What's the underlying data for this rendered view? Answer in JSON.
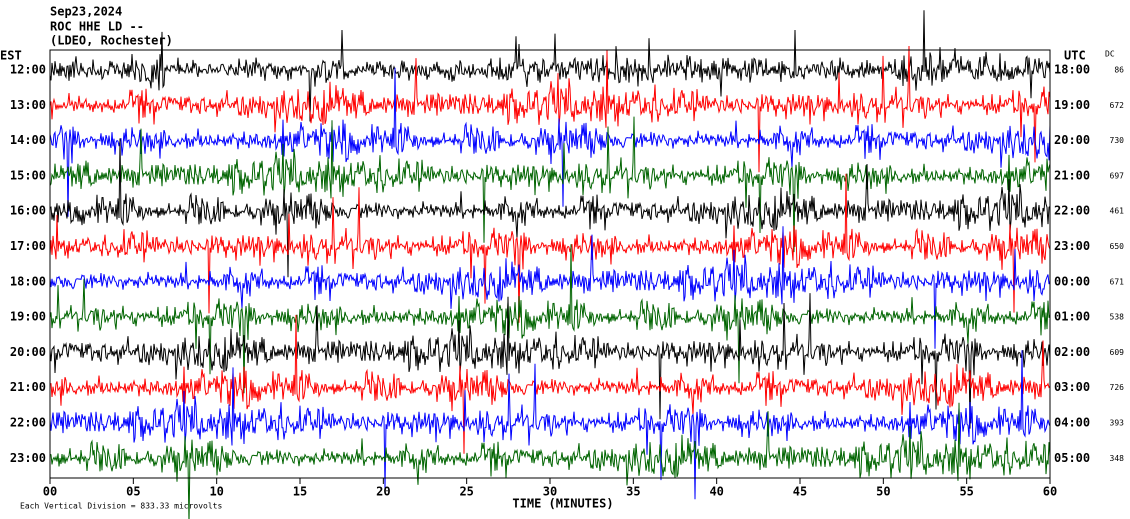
{
  "chart_data": {
    "type": "helicorder",
    "title_lines": [
      "Sep23,2024",
      "ROC HHE LD --",
      "(LDEO, Rochester)"
    ],
    "left_axis_title": "EST",
    "right_axis_title": "UTC",
    "dc_title": "DC",
    "rows": [
      {
        "est": "12:00",
        "utc": "18:00",
        "dc": "86",
        "color": "#000000"
      },
      {
        "est": "13:00",
        "utc": "19:00",
        "dc": "672",
        "color": "#ff0000"
      },
      {
        "est": "14:00",
        "utc": "20:00",
        "dc": "730",
        "color": "#0000ff"
      },
      {
        "est": "15:00",
        "utc": "21:00",
        "dc": "697",
        "color": "#006400"
      },
      {
        "est": "16:00",
        "utc": "22:00",
        "dc": "461",
        "color": "#000000"
      },
      {
        "est": "17:00",
        "utc": "23:00",
        "dc": "650",
        "color": "#ff0000"
      },
      {
        "est": "18:00",
        "utc": "00:00",
        "dc": "671",
        "color": "#0000ff"
      },
      {
        "est": "19:00",
        "utc": "01:00",
        "dc": "538",
        "color": "#006400"
      },
      {
        "est": "20:00",
        "utc": "02:00",
        "dc": "609",
        "color": "#000000"
      },
      {
        "est": "21:00",
        "utc": "03:00",
        "dc": "726",
        "color": "#ff0000"
      },
      {
        "est": "22:00",
        "utc": "04:00",
        "dc": "393",
        "color": "#0000ff"
      },
      {
        "est": "23:00",
        "utc": "05:00",
        "dc": "348",
        "color": "#006400"
      }
    ],
    "xlim": [
      0,
      60
    ],
    "xticks": [
      {
        "value": 0,
        "label": "00"
      },
      {
        "value": 5,
        "label": "05"
      },
      10,
      15,
      20,
      25,
      30,
      35,
      40,
      45,
      50,
      55,
      60
    ],
    "xlabel": "TIME (MINUTES)",
    "footer": "Each Vertical Division = 833.33 microvolts"
  }
}
